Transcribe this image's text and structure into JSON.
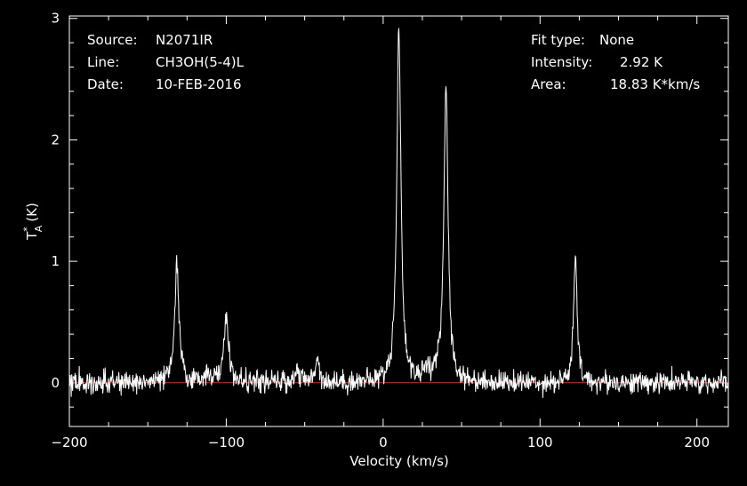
{
  "info_left": {
    "source_label": "Source:",
    "source_value": "N2071IR",
    "line_label": "Line:",
    "line_value": "CH3OH(5-4)L",
    "date_label": "Date:",
    "date_value": "10-FEB-2016"
  },
  "info_right": {
    "fit_label": "Fit type:",
    "fit_value": "None",
    "intensity_label": "Intensity:",
    "intensity_value": "2.92 K",
    "area_label": "Area:",
    "area_value": "18.83 K*km/s"
  },
  "chart_data": {
    "type": "line",
    "title": "",
    "xlabel": "Velocity (km/s)",
    "ylabel": "T*A (K)",
    "ylabel_main": "T",
    "ylabel_sup": "*",
    "ylabel_sub": "A",
    "ylabel_unit": "(K)",
    "xlim": [
      -200,
      220
    ],
    "ylim": [
      -0.36,
      3.02
    ],
    "xticks": [
      -200,
      -100,
      0,
      100,
      200
    ],
    "xtick_labels": [
      "−200",
      "−100",
      "0",
      "100",
      "200"
    ],
    "yticks": [
      0,
      1,
      2,
      3
    ],
    "ytick_labels": [
      "0",
      "1",
      "2",
      "3"
    ],
    "grid": false,
    "baseline_color": "#ff2020",
    "line_color": "#ffffff",
    "axes_color": "#ffffff",
    "noise_rms": 0.045,
    "x_step": 0.3,
    "peaks": [
      {
        "center": -131.5,
        "height": 0.97,
        "width": 1.6
      },
      {
        "center": -100,
        "height": 0.58,
        "width": 1.6
      },
      {
        "center": -112,
        "height": 0.08,
        "width": 2.5
      },
      {
        "center": -55,
        "height": 0.1,
        "width": 1.8
      },
      {
        "center": -42,
        "height": 0.22,
        "width": 1.4
      },
      {
        "center": 10,
        "height": 2.9,
        "width": 1.6
      },
      {
        "center": 40,
        "height": 2.46,
        "width": 1.6
      },
      {
        "center": 28,
        "height": 0.1,
        "width": 2.5
      },
      {
        "center": 122.5,
        "height": 1.05,
        "width": 1.3
      }
    ]
  }
}
